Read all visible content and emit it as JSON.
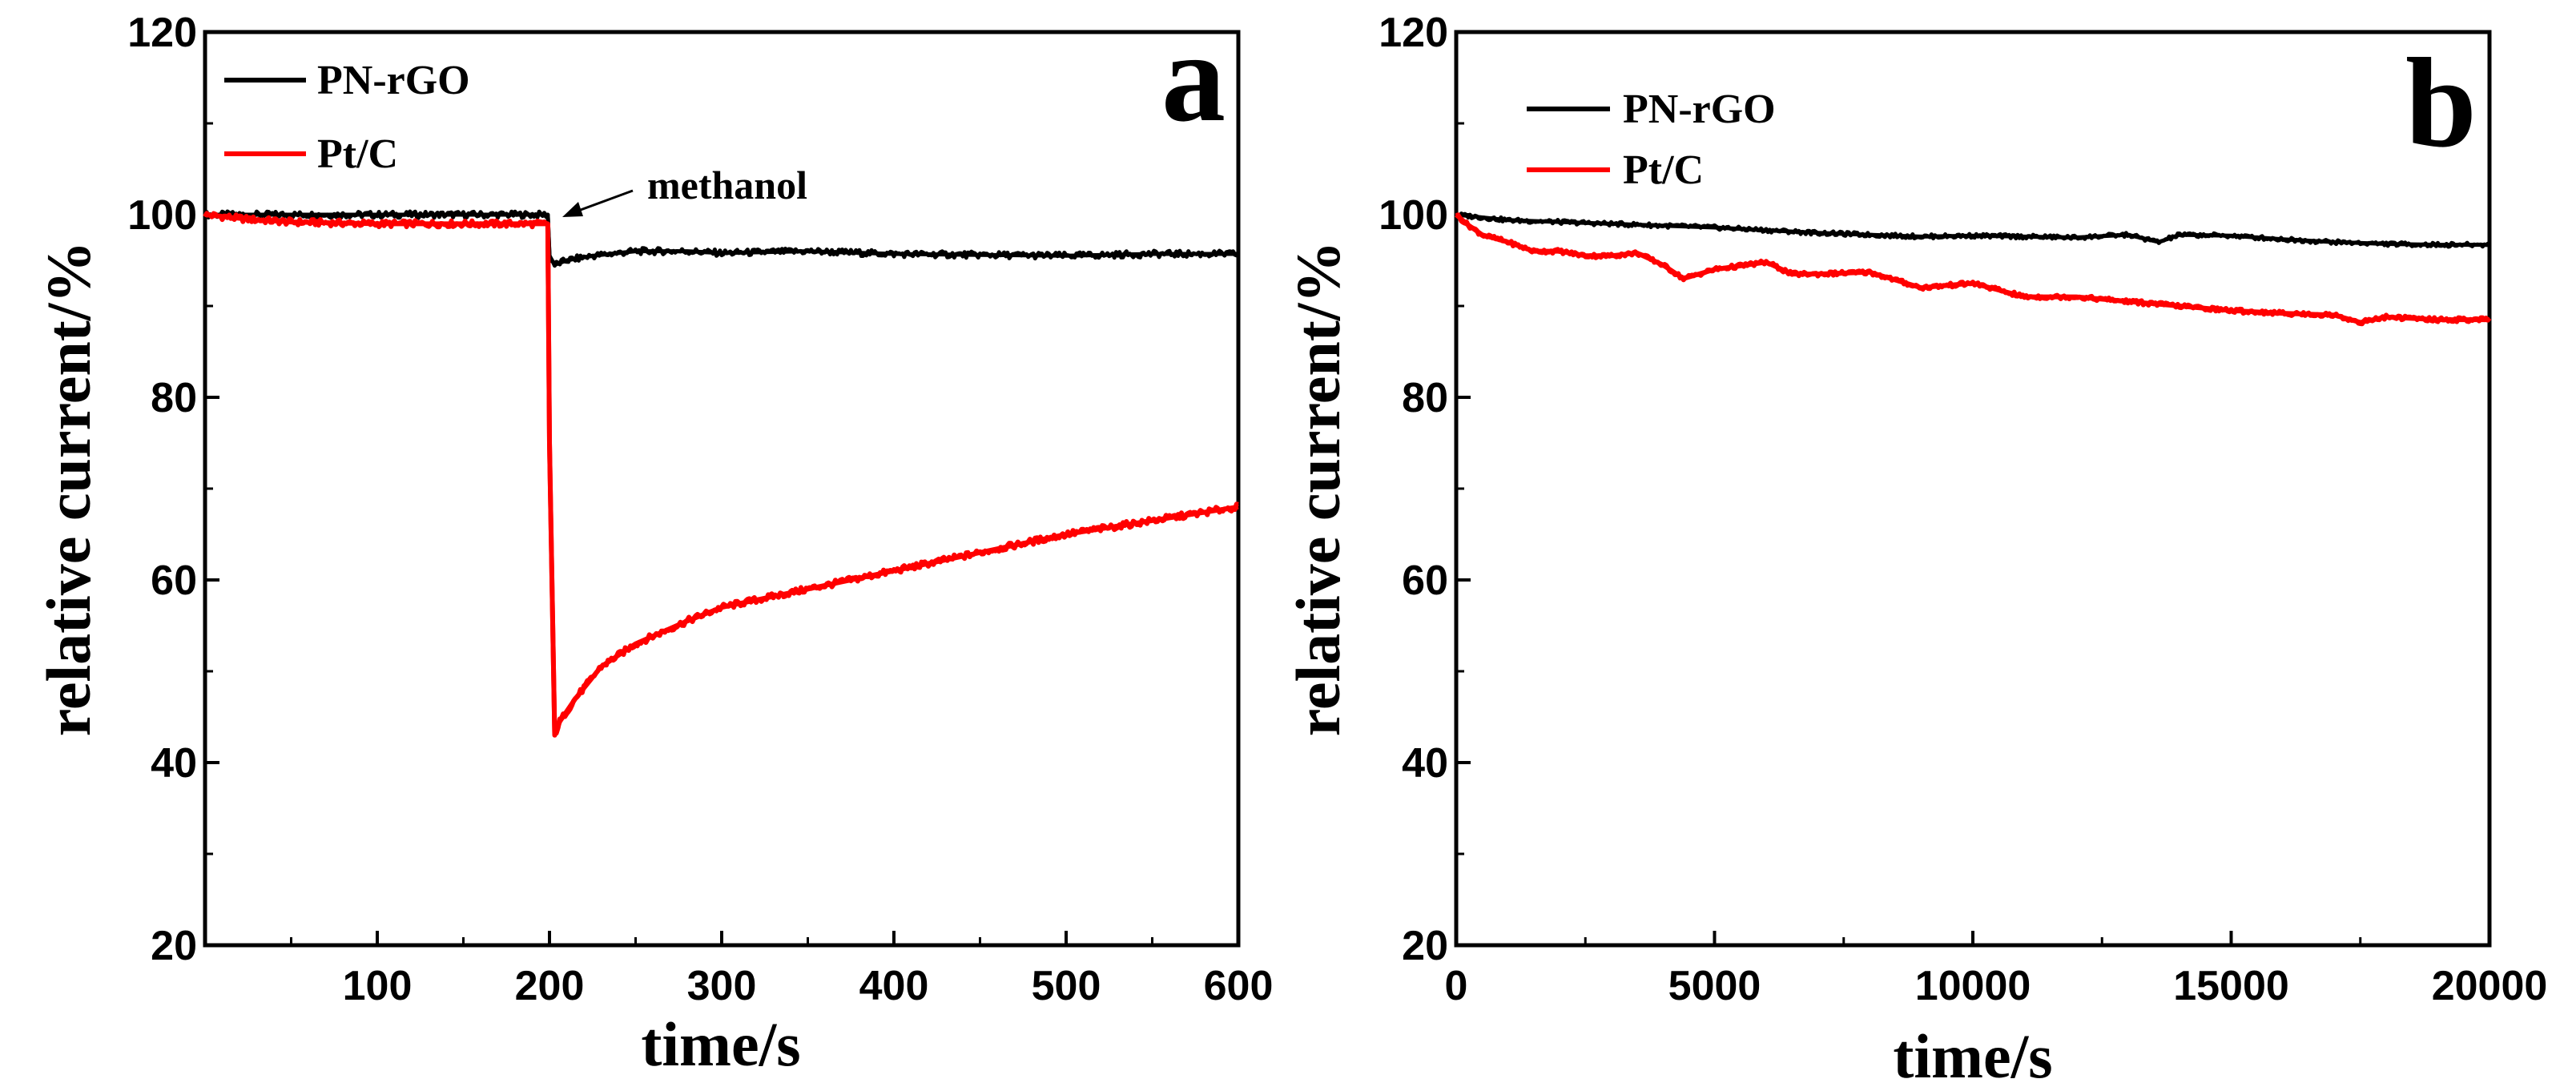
{
  "chart_data": [
    {
      "type": "line",
      "panel_label": "a",
      "xlabel": "time/s",
      "ylabel": "relative current/%",
      "xlim": [
        0,
        600
      ],
      "ylim": [
        20,
        120
      ],
      "xticks": [
        100,
        200,
        300,
        400,
        500,
        600
      ],
      "yticks": [
        20,
        40,
        60,
        80,
        100,
        120
      ],
      "legend_position": "top-left",
      "annotation": {
        "text": "methanol",
        "arrow_to": [
          200,
          100
        ]
      },
      "series": [
        {
          "name": "PN-rGO",
          "color": "#000000",
          "x": [
            0,
            50,
            100,
            150,
            199,
            200,
            203,
            210,
            225,
            250,
            280,
            300,
            350,
            400,
            450,
            500,
            550,
            600
          ],
          "y": [
            100,
            100,
            100,
            100,
            100,
            95.5,
            94.5,
            95,
            95.5,
            96,
            96,
            95.8,
            96,
            95.7,
            95.6,
            95.5,
            95.7,
            95.7
          ]
        },
        {
          "name": "Pt/C",
          "color": "#ff0000",
          "x": [
            0,
            25,
            50,
            100,
            150,
            199,
            200,
            203,
            206,
            215,
            230,
            250,
            280,
            300,
            350,
            400,
            450,
            500,
            550,
            600
          ],
          "y": [
            100,
            99.5,
            99.2,
            99,
            99,
            99,
            75,
            43,
            44.5,
            47,
            50.5,
            53,
            55.5,
            57,
            59,
            61,
            63,
            65,
            66.5,
            68
          ]
        }
      ]
    },
    {
      "type": "line",
      "panel_label": "b",
      "xlabel": "time/s",
      "ylabel": "relative current/%",
      "xlim": [
        0,
        20000
      ],
      "ylim": [
        20,
        120
      ],
      "xticks": [
        0,
        5000,
        10000,
        15000,
        20000
      ],
      "yticks": [
        20,
        40,
        60,
        80,
        100,
        120
      ],
      "legend_position": "top-left",
      "series": [
        {
          "name": "PN-rGO",
          "color": "#000000",
          "x": [
            0,
            1000,
            2000,
            3000,
            4000,
            5000,
            6000,
            7000,
            8000,
            9000,
            10000,
            11000,
            12000,
            13000,
            13600,
            14000,
            15000,
            16000,
            17000,
            18000,
            19000,
            20000
          ],
          "y": [
            100,
            99.4,
            99.2,
            99,
            98.8,
            98.6,
            98.3,
            98,
            97.8,
            97.6,
            97.7,
            97.6,
            97.5,
            97.8,
            97,
            97.8,
            97.7,
            97.3,
            97,
            96.8,
            96.7,
            96.7
          ]
        },
        {
          "name": "Pt/C",
          "color": "#ff0000",
          "x": [
            0,
            200,
            500,
            1000,
            1500,
            2000,
            2500,
            3000,
            3500,
            4000,
            4400,
            5000,
            6000,
            6500,
            7000,
            8000,
            9000,
            10000,
            11000,
            12000,
            13000,
            14000,
            15000,
            16000,
            17000,
            17500,
            18000,
            19000,
            20000
          ],
          "y": [
            100,
            99,
            97.8,
            97,
            96,
            96,
            95.5,
            95.5,
            95.8,
            94.5,
            93,
            94,
            94.8,
            93.5,
            93.5,
            93.7,
            92,
            92.5,
            91,
            91,
            90.5,
            90,
            89.5,
            89.2,
            89,
            88.2,
            88.8,
            88.5,
            88.5
          ]
        }
      ]
    }
  ]
}
